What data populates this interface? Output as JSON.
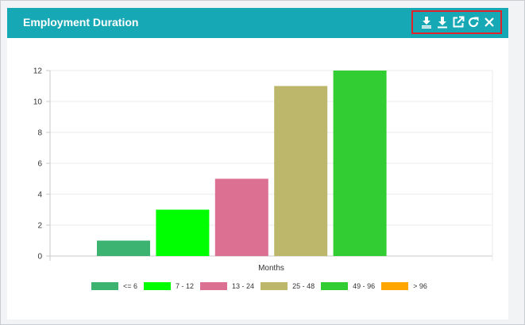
{
  "panel": {
    "title": "Employment Duration",
    "toolbar": {
      "icons": [
        "download-csv-icon",
        "download-icon",
        "open-external-icon",
        "refresh-icon",
        "close-icon"
      ]
    }
  },
  "colors": {
    "header": "#17a8b5",
    "highlight_border": "#e0222b"
  },
  "chart_data": {
    "type": "bar",
    "xlabel": "Months",
    "ylabel": "",
    "ylim": [
      0,
      12
    ],
    "yticks": [
      0,
      2,
      4,
      6,
      8,
      10,
      12
    ],
    "grid": true,
    "legend_position": "bottom",
    "series": [
      {
        "name": "<= 6",
        "value": 1,
        "color": "#3cb371"
      },
      {
        "name": "7 - 12",
        "value": 3,
        "color": "#00ff00"
      },
      {
        "name": "13 - 24",
        "value": 5,
        "color": "#db7093"
      },
      {
        "name": "25 - 48",
        "value": 11,
        "color": "#bdb76b"
      },
      {
        "name": "49 - 96",
        "value": 12,
        "color": "#32cd32"
      },
      {
        "name": "> 96",
        "value": 0,
        "color": "#ffa500"
      }
    ]
  }
}
